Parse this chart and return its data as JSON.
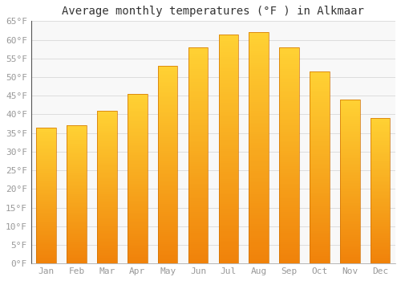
{
  "title": "Average monthly temperatures (°F ) in Alkmaar",
  "months": [
    "Jan",
    "Feb",
    "Mar",
    "Apr",
    "May",
    "Jun",
    "Jul",
    "Aug",
    "Sep",
    "Oct",
    "Nov",
    "Dec"
  ],
  "values": [
    36.5,
    37.0,
    41.0,
    45.5,
    53.0,
    58.0,
    61.5,
    62.0,
    58.0,
    51.5,
    44.0,
    39.0
  ],
  "bar_color_top": "#FFD234",
  "bar_color_bottom": "#F0820A",
  "bar_edge_color": "#D07000",
  "background_color": "#FFFFFF",
  "plot_area_color": "#F8F8F8",
  "grid_color": "#DDDDDD",
  "ylim": [
    0,
    65
  ],
  "yticks": [
    0,
    5,
    10,
    15,
    20,
    25,
    30,
    35,
    40,
    45,
    50,
    55,
    60,
    65
  ],
  "title_fontsize": 10,
  "tick_fontsize": 8,
  "tick_label_color": "#999999",
  "font_family": "monospace"
}
